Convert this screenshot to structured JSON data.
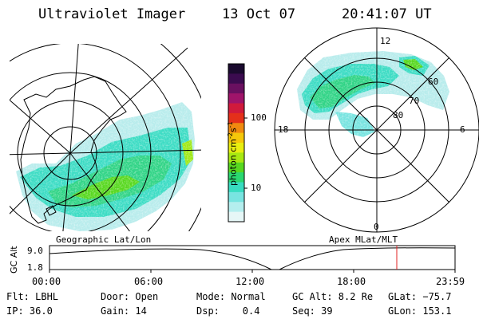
{
  "header": {
    "instrument": "Ultraviolet Imager",
    "date": "13 Oct 07",
    "time": "20:41:07 UT"
  },
  "left_map": {
    "caption": "Geographic Lat/Lon"
  },
  "right_map": {
    "caption": "Apex MLat/MLT",
    "mlt_labels": {
      "top": "12",
      "left": "18",
      "right": "6",
      "bottom": "0"
    },
    "lat_labels": [
      "60",
      "70",
      "80"
    ]
  },
  "colorbar": {
    "unit_label": "photon cm",
    "unit_sup1": "-2",
    "unit_mid": "s",
    "unit_sup2": "-1",
    "ticks": [
      "100",
      "10"
    ],
    "colors": [
      "#1a0a2e",
      "#3b0b4f",
      "#6a1060",
      "#a0146a",
      "#d01a3c",
      "#e4301a",
      "#f08a10",
      "#f5c80a",
      "#e8ee10",
      "#a8e812",
      "#58d820",
      "#2ad870",
      "#38dcc0",
      "#78e4e0",
      "#b4eeee",
      "#e6f7f7"
    ]
  },
  "altitude_panel": {
    "y_label": "GC Alt",
    "y_ticks": [
      "9.0",
      "1.8"
    ],
    "x_ticks": [
      "00:00",
      "06:00",
      "12:00",
      "18:00",
      "23:59"
    ]
  },
  "status": {
    "row1": {
      "flt": "Flt: LBHL",
      "door": "Door: Open",
      "mode": "Mode: Normal",
      "gcalt": "GC Alt: 8.2 Re",
      "glat": "GLat: −75.7"
    },
    "row2": {
      "ip": "IP: 36.0",
      "gain": "Gain: 14",
      "dsp": "Dsp:    0.4",
      "seq": "Seq: 39",
      "glon": "GLon: 153.1"
    }
  }
}
